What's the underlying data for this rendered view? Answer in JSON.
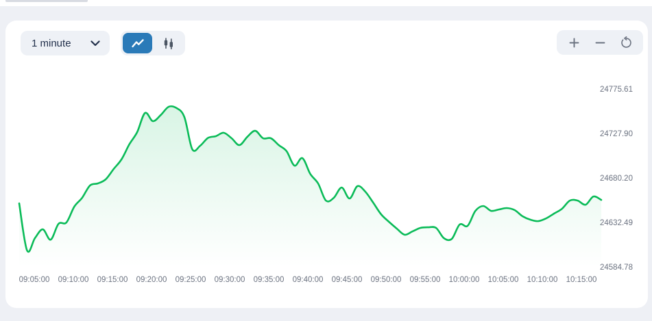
{
  "theme": {
    "page_bg": "#eef0f5",
    "card_bg": "#ffffff",
    "control_bg": "#eef1f6",
    "active_blue": "#2a7ab8",
    "icon_gray": "#6b7280",
    "icon_dark": "#4b5563",
    "text_dark": "#22304b",
    "axis_text": "#6b7280"
  },
  "toolbar": {
    "interval_dropdown": {
      "value": "1 minute"
    },
    "chart_type": {
      "selected": "line",
      "options": [
        "line",
        "candlestick"
      ]
    },
    "zoom_buttons": [
      "zoom-in",
      "zoom-out",
      "reset"
    ]
  },
  "chart_data": {
    "type": "area",
    "title": "",
    "interval": "1 minute",
    "grid": false,
    "legend": false,
    "line_color": "#0abb58",
    "fill_top": "rgba(10,187,88,0.16)",
    "fill_bottom": "rgba(10,187,88,0)",
    "ylim": [
      24584.78,
      24775.61
    ],
    "y_ticks": [
      "24775.61",
      "24727.90",
      "24680.20",
      "24632.49",
      "24584.78"
    ],
    "x_ticks": [
      "09:05:00",
      "09:10:00",
      "09:15:00",
      "09:20:00",
      "09:25:00",
      "09:30:00",
      "09:35:00",
      "09:40:00",
      "09:45:00",
      "09:50:00",
      "09:55:00",
      "10:00:00",
      "10:05:00",
      "10:10:00",
      "10:15:00"
    ],
    "x": [
      "09:03:00",
      "09:04:00",
      "09:05:00",
      "09:06:00",
      "09:07:00",
      "09:08:00",
      "09:09:00",
      "09:10:00",
      "09:11:00",
      "09:12:00",
      "09:13:00",
      "09:14:00",
      "09:15:00",
      "09:16:00",
      "09:17:00",
      "09:18:00",
      "09:19:00",
      "09:20:00",
      "09:21:00",
      "09:22:00",
      "09:23:00",
      "09:24:00",
      "09:25:00",
      "09:26:00",
      "09:27:00",
      "09:28:00",
      "09:29:00",
      "09:30:00",
      "09:31:00",
      "09:32:00",
      "09:33:00",
      "09:34:00",
      "09:35:00",
      "09:36:00",
      "09:37:00",
      "09:38:00",
      "09:39:00",
      "09:40:00",
      "09:41:00",
      "09:42:00",
      "09:43:00",
      "09:44:00",
      "09:45:00",
      "09:46:00",
      "09:47:00",
      "09:48:00",
      "09:49:00",
      "09:50:00",
      "09:51:00",
      "09:52:00",
      "09:53:00",
      "09:54:00",
      "09:55:00",
      "09:56:00",
      "09:57:00",
      "09:58:00",
      "09:59:00",
      "10:00:00",
      "10:01:00",
      "10:02:00",
      "10:03:00",
      "10:04:00",
      "10:05:00",
      "10:06:00",
      "10:07:00",
      "10:08:00",
      "10:09:00",
      "10:10:00",
      "10:11:00",
      "10:12:00",
      "10:13:00",
      "10:14:00",
      "10:15:00",
      "10:16:00",
      "10:17:00"
    ],
    "values": [
      24653.0,
      24602.4,
      24615.6,
      24625.1,
      24614.0,
      24631.0,
      24632.4,
      24649.4,
      24658.9,
      24672.1,
      24674.3,
      24678.7,
      24689.7,
      24700.0,
      24716.2,
      24729.4,
      24749.9,
      24741.1,
      24747.7,
      24756.5,
      24755.1,
      24745.5,
      24711.0,
      24714.7,
      24723.1,
      24725.0,
      24728.6,
      24722.8,
      24715.4,
      24724.2,
      24730.8,
      24722.8,
      24722.8,
      24715.4,
      24708.8,
      24693.4,
      24701.5,
      24684.6,
      24674.3,
      24655.9,
      24658.9,
      24669.9,
      24658.2,
      24671.4,
      24665.5,
      24653.8,
      24641.3,
      24633.2,
      24625.9,
      24619.3,
      24622.9,
      24626.6,
      24627.3,
      24626.6,
      24615.6,
      24614.9,
      24630.3,
      24628.8,
      24644.9,
      24650.1,
      24644.9,
      24646.4,
      24647.9,
      24645.7,
      24639.1,
      24635.4,
      24633.9,
      24636.9,
      24642.0,
      24647.1,
      24655.9,
      24655.9,
      24651.5,
      24660.3,
      24656.6
    ]
  }
}
